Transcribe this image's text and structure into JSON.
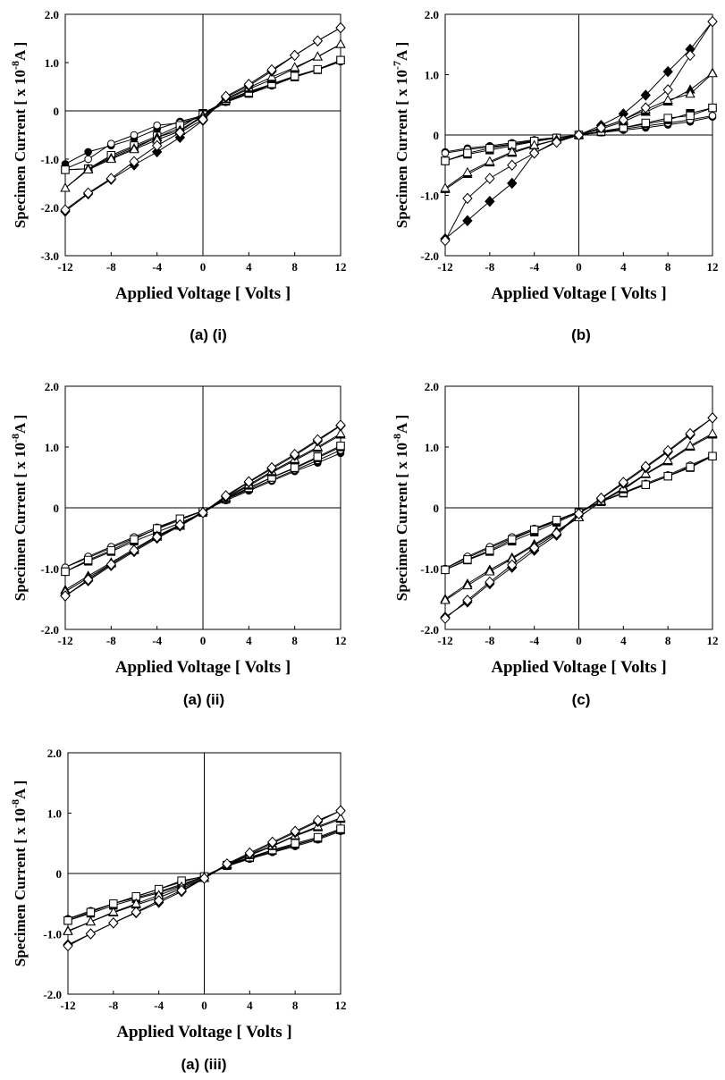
{
  "chart_data": [
    {
      "type": "line",
      "caption": "(a) (i)",
      "xlabel": "Applied Voltage [ Volts ]",
      "ylabel_main": "Specimen Current [ x 10",
      "ylabel_exp": "-8",
      "ylabel_tail": "A ]",
      "xticks": [
        "-12",
        "-8",
        "-4",
        "0",
        "4",
        "8",
        "12"
      ],
      "yticks": [
        "2.0",
        "1.0",
        "0",
        "-1.0",
        "-2.0",
        "-3.0"
      ],
      "xlim": [
        -12,
        12
      ],
      "ylim": [
        -3.0,
        2.0
      ],
      "x": [
        -12,
        -10,
        -8,
        -6,
        -4,
        -2,
        0,
        2,
        4,
        6,
        8,
        10,
        12
      ],
      "series": [
        {
          "marker": "circle-filled",
          "values": [
            -1.1,
            -0.85,
            -0.72,
            -0.58,
            -0.38,
            -0.22,
            -0.1,
            0.18,
            0.35,
            0.52,
            0.7,
            0.85,
            1.02
          ]
        },
        {
          "marker": "circle-open",
          "values": [
            -1.2,
            -1.0,
            -0.68,
            -0.5,
            -0.3,
            -0.25,
            -0.12,
            0.22,
            0.4,
            0.55,
            0.7,
            0.86,
            1.05
          ]
        },
        {
          "marker": "square-filled",
          "values": [
            -1.22,
            -1.2,
            -0.95,
            -0.75,
            -0.55,
            -0.35,
            -0.05,
            0.2,
            0.36,
            0.55,
            0.7,
            0.85,
            1.05
          ]
        },
        {
          "marker": "square-open",
          "values": [
            -1.22,
            -1.2,
            -0.92,
            -0.72,
            -0.52,
            -0.3,
            -0.08,
            0.22,
            0.38,
            0.56,
            0.72,
            0.86,
            1.05
          ]
        },
        {
          "marker": "triangle-filled",
          "values": [
            -1.6,
            -1.2,
            -0.98,
            -0.78,
            -0.55,
            -0.4,
            -0.1,
            0.24,
            0.45,
            0.65,
            0.88,
            1.12,
            1.38
          ]
        },
        {
          "marker": "triangle-open",
          "values": [
            -1.6,
            -1.22,
            -1.0,
            -0.8,
            -0.6,
            -0.42,
            -0.12,
            0.25,
            0.48,
            0.7,
            0.9,
            1.12,
            1.38
          ]
        },
        {
          "marker": "diamond-filled",
          "values": [
            -2.08,
            -1.72,
            -1.42,
            -1.12,
            -0.85,
            -0.55,
            -0.2,
            0.28,
            0.52,
            0.82,
            1.15,
            1.45,
            1.72
          ]
        },
        {
          "marker": "diamond-open",
          "values": [
            -2.05,
            -1.7,
            -1.4,
            -1.05,
            -0.72,
            -0.45,
            -0.18,
            0.3,
            0.55,
            0.85,
            1.15,
            1.45,
            1.72
          ]
        }
      ]
    },
    {
      "type": "line",
      "caption": "(b)",
      "xlabel": "Applied Voltage [ Volts ]",
      "ylabel_main": "Specimen Current [ x 10",
      "ylabel_exp": "-7",
      "ylabel_tail": "A ]",
      "xticks": [
        "-12",
        "-8",
        "-4",
        "0",
        "4",
        "8",
        "12"
      ],
      "yticks": [
        "2.0",
        "1.0",
        "0",
        "-1.0",
        "-2.0"
      ],
      "xlim": [
        -12,
        12
      ],
      "ylim": [
        -2.0,
        2.0
      ],
      "x": [
        -12,
        -10,
        -8,
        -6,
        -4,
        -2,
        0,
        2,
        4,
        6,
        8,
        10,
        12
      ],
      "series": [
        {
          "marker": "circle-filled",
          "values": [
            -0.28,
            -0.22,
            -0.18,
            -0.13,
            -0.08,
            -0.04,
            0,
            0.04,
            0.08,
            0.12,
            0.17,
            0.22,
            0.3
          ]
        },
        {
          "marker": "circle-open",
          "values": [
            -0.3,
            -0.24,
            -0.2,
            -0.15,
            -0.09,
            -0.05,
            0,
            0.05,
            0.1,
            0.15,
            0.2,
            0.25,
            0.32
          ]
        },
        {
          "marker": "square-filled",
          "values": [
            -0.43,
            -0.32,
            -0.25,
            -0.18,
            -0.11,
            -0.05,
            0,
            0.05,
            0.12,
            0.18,
            0.25,
            0.36,
            0.45
          ]
        },
        {
          "marker": "square-open",
          "values": [
            -0.43,
            -0.3,
            -0.22,
            -0.16,
            -0.1,
            -0.05,
            0,
            0.06,
            0.12,
            0.2,
            0.28,
            0.32,
            0.45
          ]
        },
        {
          "marker": "triangle-filled",
          "values": [
            -0.9,
            -0.65,
            -0.46,
            -0.3,
            -0.18,
            -0.08,
            0,
            0.1,
            0.22,
            0.38,
            0.55,
            0.75,
            1.03
          ]
        },
        {
          "marker": "triangle-open",
          "values": [
            -0.88,
            -0.62,
            -0.44,
            -0.28,
            -0.17,
            -0.08,
            0,
            0.12,
            0.25,
            0.42,
            0.58,
            0.68,
            1.02
          ]
        },
        {
          "marker": "diamond-filled",
          "values": [
            -1.72,
            -1.42,
            -1.1,
            -0.8,
            -0.3,
            -0.1,
            0,
            0.16,
            0.35,
            0.66,
            1.05,
            1.42,
            1.88
          ]
        },
        {
          "marker": "diamond-open",
          "values": [
            -1.75,
            -1.05,
            -0.72,
            -0.5,
            -0.3,
            -0.12,
            0,
            0.12,
            0.25,
            0.45,
            0.75,
            1.32,
            1.88
          ]
        }
      ]
    },
    {
      "type": "line",
      "caption": "(a) (ii)",
      "xlabel": "Applied Voltage [ Volts ]",
      "ylabel_main": "Specimen Current [ x 10",
      "ylabel_exp": "-8",
      "ylabel_tail": "A ]",
      "xticks": [
        "-12",
        "-8",
        "-4",
        "0",
        "4",
        "8",
        "12"
      ],
      "yticks": [
        "2.0",
        "1.0",
        "0",
        "-1.0",
        "-2.0"
      ],
      "xlim": [
        -12,
        12
      ],
      "ylim": [
        -2.0,
        2.0
      ],
      "x": [
        -12,
        -10,
        -8,
        -6,
        -4,
        -2,
        0,
        2,
        4,
        6,
        8,
        10,
        12
      ],
      "series": [
        {
          "marker": "circle-filled",
          "values": [
            -0.98,
            -0.82,
            -0.66,
            -0.5,
            -0.35,
            -0.2,
            -0.05,
            0.12,
            0.28,
            0.44,
            0.6,
            0.74,
            0.9
          ]
        },
        {
          "marker": "circle-open",
          "values": [
            -0.98,
            -0.8,
            -0.64,
            -0.48,
            -0.32,
            -0.18,
            -0.05,
            0.14,
            0.3,
            0.46,
            0.62,
            0.78,
            0.95
          ]
        },
        {
          "marker": "square-filled",
          "values": [
            -1.05,
            -0.88,
            -0.72,
            -0.55,
            -0.4,
            -0.25,
            -0.08,
            0.14,
            0.32,
            0.5,
            0.65,
            0.82,
            1.0
          ]
        },
        {
          "marker": "square-open",
          "values": [
            -1.05,
            -0.86,
            -0.7,
            -0.52,
            -0.34,
            -0.18,
            -0.06,
            0.15,
            0.33,
            0.5,
            0.66,
            0.84,
            1.02
          ]
        },
        {
          "marker": "triangle-filled",
          "values": [
            -1.35,
            -1.12,
            -0.9,
            -0.68,
            -0.46,
            -0.28,
            -0.06,
            0.16,
            0.36,
            0.58,
            0.78,
            0.98,
            1.2
          ]
        },
        {
          "marker": "triangle-open",
          "values": [
            -1.38,
            -1.15,
            -0.92,
            -0.7,
            -0.48,
            -0.3,
            -0.06,
            0.17,
            0.38,
            0.6,
            0.8,
            1.0,
            1.22
          ]
        },
        {
          "marker": "diamond-filled",
          "values": [
            -1.45,
            -1.2,
            -0.95,
            -0.72,
            -0.5,
            -0.3,
            -0.08,
            0.18,
            0.42,
            0.64,
            0.86,
            1.1,
            1.35
          ]
        },
        {
          "marker": "diamond-open",
          "values": [
            -1.45,
            -1.18,
            -0.93,
            -0.7,
            -0.48,
            -0.28,
            -0.08,
            0.2,
            0.43,
            0.66,
            0.88,
            1.12,
            1.36
          ]
        }
      ]
    },
    {
      "type": "line",
      "caption": "(c)",
      "xlabel": "Applied Voltage [ Volts ]",
      "ylabel_main": "Specimen Current [ x 10",
      "ylabel_exp": "-8",
      "ylabel_tail": "A ]",
      "xticks": [
        "-12",
        "-8",
        "-4",
        "0",
        "4",
        "8",
        "12"
      ],
      "yticks": [
        "2.0",
        "1.0",
        "0",
        "-1.0",
        "-2.0"
      ],
      "xlim": [
        -12,
        12
      ],
      "ylim": [
        -2.0,
        2.0
      ],
      "x": [
        -12,
        -10,
        -8,
        -6,
        -4,
        -2,
        0,
        2,
        4,
        6,
        8,
        10,
        12
      ],
      "series": [
        {
          "marker": "circle-filled",
          "values": [
            -1.0,
            -0.82,
            -0.66,
            -0.5,
            -0.36,
            -0.22,
            -0.06,
            0.1,
            0.24,
            0.38,
            0.52,
            0.68,
            0.85
          ]
        },
        {
          "marker": "circle-open",
          "values": [
            -1.0,
            -0.8,
            -0.64,
            -0.48,
            -0.34,
            -0.2,
            -0.06,
            0.1,
            0.25,
            0.4,
            0.54,
            0.7,
            0.86
          ]
        },
        {
          "marker": "square-filled",
          "values": [
            -1.02,
            -0.86,
            -0.72,
            -0.55,
            -0.4,
            -0.24,
            -0.08,
            0.1,
            0.24,
            0.38,
            0.52,
            0.66,
            0.85
          ]
        },
        {
          "marker": "square-open",
          "values": [
            -1.02,
            -0.85,
            -0.7,
            -0.52,
            -0.36,
            -0.2,
            -0.08,
            0.1,
            0.25,
            0.38,
            0.52,
            0.67,
            0.85
          ]
        },
        {
          "marker": "triangle-filled",
          "values": [
            -1.5,
            -1.25,
            -1.02,
            -0.82,
            -0.6,
            -0.38,
            -0.15,
            0.1,
            0.3,
            0.55,
            0.76,
            1.0,
            1.2
          ]
        },
        {
          "marker": "triangle-open",
          "values": [
            -1.52,
            -1.28,
            -1.05,
            -0.84,
            -0.62,
            -0.4,
            -0.16,
            0.11,
            0.32,
            0.56,
            0.78,
            1.02,
            1.22
          ]
        },
        {
          "marker": "diamond-filled",
          "values": [
            -1.8,
            -1.55,
            -1.25,
            -0.98,
            -0.7,
            -0.45,
            -0.1,
            0.15,
            0.4,
            0.66,
            0.92,
            1.2,
            1.48
          ]
        },
        {
          "marker": "diamond-open",
          "values": [
            -1.82,
            -1.52,
            -1.22,
            -0.94,
            -0.66,
            -0.42,
            -0.1,
            0.16,
            0.42,
            0.68,
            0.94,
            1.22,
            1.48
          ]
        }
      ]
    },
    {
      "type": "line",
      "caption": "(a) (iii)",
      "xlabel": "Applied Voltage [ Volts ]",
      "ylabel_main": "Specimen Current [ x 10",
      "ylabel_exp": "-8",
      "ylabel_tail": "A ]",
      "xticks": [
        "-12",
        "-8",
        "-4",
        "0",
        "4",
        "8",
        "12"
      ],
      "yticks": [
        "2.0",
        "1.0",
        "0",
        "-1.0",
        "-2.0"
      ],
      "xlim": [
        -12,
        12
      ],
      "ylim": [
        -2.0,
        2.0
      ],
      "x": [
        -12,
        -10,
        -8,
        -6,
        -4,
        -2,
        0,
        2,
        4,
        6,
        8,
        10,
        12
      ],
      "series": [
        {
          "marker": "circle-filled",
          "values": [
            -0.75,
            -0.62,
            -0.5,
            -0.4,
            -0.3,
            -0.18,
            -0.05,
            0.12,
            0.24,
            0.35,
            0.45,
            0.56,
            0.7
          ]
        },
        {
          "marker": "circle-open",
          "values": [
            -0.76,
            -0.62,
            -0.5,
            -0.38,
            -0.26,
            -0.14,
            -0.04,
            0.13,
            0.25,
            0.36,
            0.47,
            0.58,
            0.72
          ]
        },
        {
          "marker": "square-filled",
          "values": [
            -0.78,
            -0.66,
            -0.53,
            -0.42,
            -0.32,
            -0.2,
            -0.06,
            0.13,
            0.26,
            0.38,
            0.48,
            0.58,
            0.72
          ]
        },
        {
          "marker": "square-open",
          "values": [
            -0.78,
            -0.64,
            -0.5,
            -0.38,
            -0.26,
            -0.12,
            -0.05,
            0.14,
            0.27,
            0.39,
            0.5,
            0.6,
            0.74
          ]
        },
        {
          "marker": "triangle-filled",
          "values": [
            -0.95,
            -0.8,
            -0.65,
            -0.52,
            -0.4,
            -0.25,
            -0.08,
            0.14,
            0.3,
            0.45,
            0.62,
            0.76,
            0.9
          ]
        },
        {
          "marker": "triangle-open",
          "values": [
            -0.96,
            -0.8,
            -0.64,
            -0.5,
            -0.36,
            -0.22,
            -0.08,
            0.15,
            0.31,
            0.46,
            0.63,
            0.78,
            0.92
          ]
        },
        {
          "marker": "diamond-filled",
          "values": [
            -1.18,
            -1.0,
            -0.82,
            -0.65,
            -0.48,
            -0.3,
            -0.08,
            0.15,
            0.32,
            0.5,
            0.68,
            0.86,
            1.04
          ]
        },
        {
          "marker": "diamond-open",
          "values": [
            -1.2,
            -1.0,
            -0.82,
            -0.64,
            -0.45,
            -0.28,
            -0.08,
            0.16,
            0.34,
            0.52,
            0.7,
            0.88,
            1.04
          ]
        }
      ]
    }
  ]
}
